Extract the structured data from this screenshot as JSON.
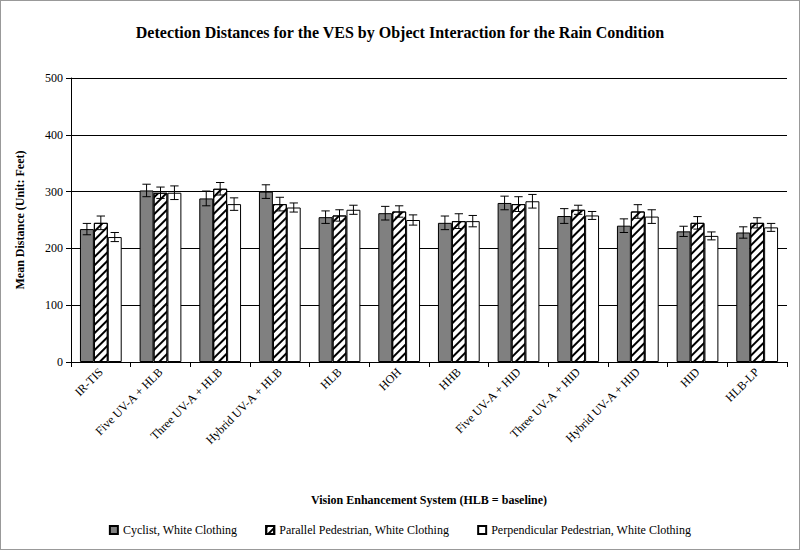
{
  "chart_data": {
    "type": "bar",
    "title": "Detection Distances for the VES by Object Interaction for the Rain Condition",
    "x_label": "Vision Enhancement System (HLB = baseline)",
    "y_label": "Mean Distance (Unit: Feet)",
    "categories": [
      "IR-TIS",
      "Five UV-A + HLB",
      "Three UV-A + HLB",
      "Hybrid UV-A + HLB",
      "HLB",
      "HOH",
      "HHB",
      "Five UV-A + HID",
      "Three UV-A + HID",
      "Hybrid UV-A + HID",
      "HID",
      "HLB-LP"
    ],
    "series": [
      {
        "name": "Cyclist, White Clothing",
        "color": "#808080",
        "values": [
          234,
          302,
          288,
          300,
          255,
          262,
          245,
          280,
          257,
          240,
          230,
          228
        ],
        "errors": [
          10,
          11,
          13,
          12,
          11,
          12,
          12,
          12,
          13,
          12,
          9,
          10
        ]
      },
      {
        "name": "Parallel Pedestrian, White Clothing",
        "color": "#ffffff",
        "values": [
          245,
          298,
          305,
          278,
          258,
          265,
          248,
          278,
          268,
          265,
          245,
          245
        ],
        "errors": [
          12,
          10,
          11,
          12,
          10,
          10,
          13,
          13,
          8,
          12,
          11,
          9
        ]
      },
      {
        "name": "Perpendicular Pedestrian, White Clothing",
        "color": "#ffffff",
        "values": [
          220,
          298,
          278,
          272,
          268,
          250,
          248,
          283,
          258,
          256,
          222,
          237
        ],
        "errors": [
          8,
          12,
          11,
          8,
          8,
          9,
          10,
          12,
          7,
          12,
          7,
          7
        ]
      }
    ],
    "ylim": [
      0,
      500
    ],
    "yticks": [
      0,
      100,
      200,
      300,
      400,
      500
    ],
    "grid": true,
    "legend": "bottom"
  }
}
